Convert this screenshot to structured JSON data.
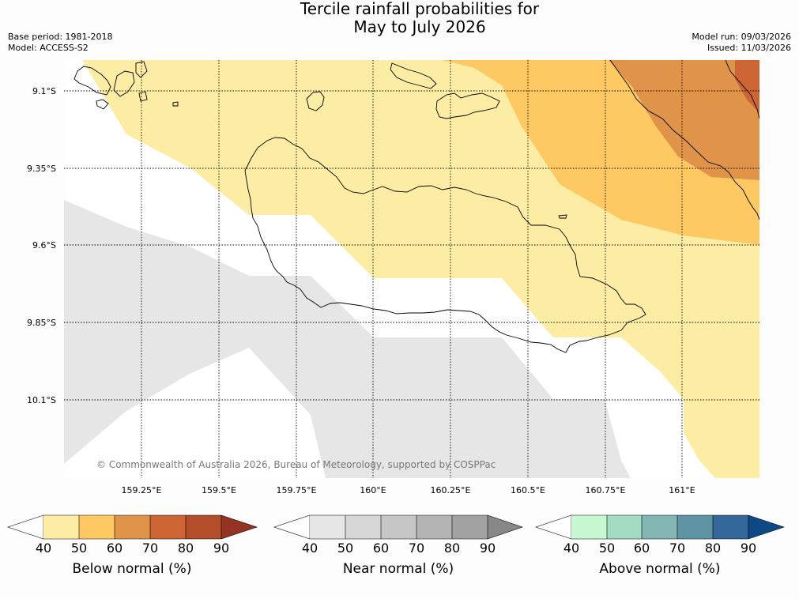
{
  "title_line1": "Tercile rainfall probabilities for",
  "title_line2": "May to July 2026",
  "base_period": "Base period: 1981-2018",
  "model": "Model: ACCESS-S2",
  "model_run": "Model run: 09/03/2026",
  "issued": "Issued: 11/03/2026",
  "credit": "© Commonwealth of Australia 2026, Bureau of Meteorology, supported by COSPPac",
  "lat_labels": [
    "9.1°S",
    "9.35°S",
    "9.6°S",
    "9.85°S",
    "10.1°S"
  ],
  "lon_labels": [
    "159.25°E",
    "159.5°E",
    "159.75°E",
    "160°E",
    "160.25°E",
    "160.5°E",
    "160.75°E",
    "161°E"
  ],
  "legends": [
    {
      "title": "Below normal (%)",
      "ticks": [
        "40",
        "50",
        "60",
        "70",
        "80",
        "90"
      ],
      "colors": [
        "#fdeda4",
        "#fec862",
        "#e0944a",
        "#cc6434",
        "#b24e2a",
        "#953322"
      ]
    },
    {
      "title": "Near normal (%)",
      "ticks": [
        "40",
        "50",
        "60",
        "70",
        "80",
        "90"
      ],
      "colors": [
        "#e6e6e6",
        "#d7d7d7",
        "#c6c6c6",
        "#b4b4b4",
        "#a2a2a2",
        "#888888"
      ]
    },
    {
      "title": "Above normal (%)",
      "ticks": [
        "40",
        "50",
        "60",
        "70",
        "80",
        "90"
      ],
      "colors": [
        "#c8f8d2",
        "#a4dbc3",
        "#83b5b2",
        "#5e94a4",
        "#34679a",
        "#0f4887"
      ]
    }
  ]
}
